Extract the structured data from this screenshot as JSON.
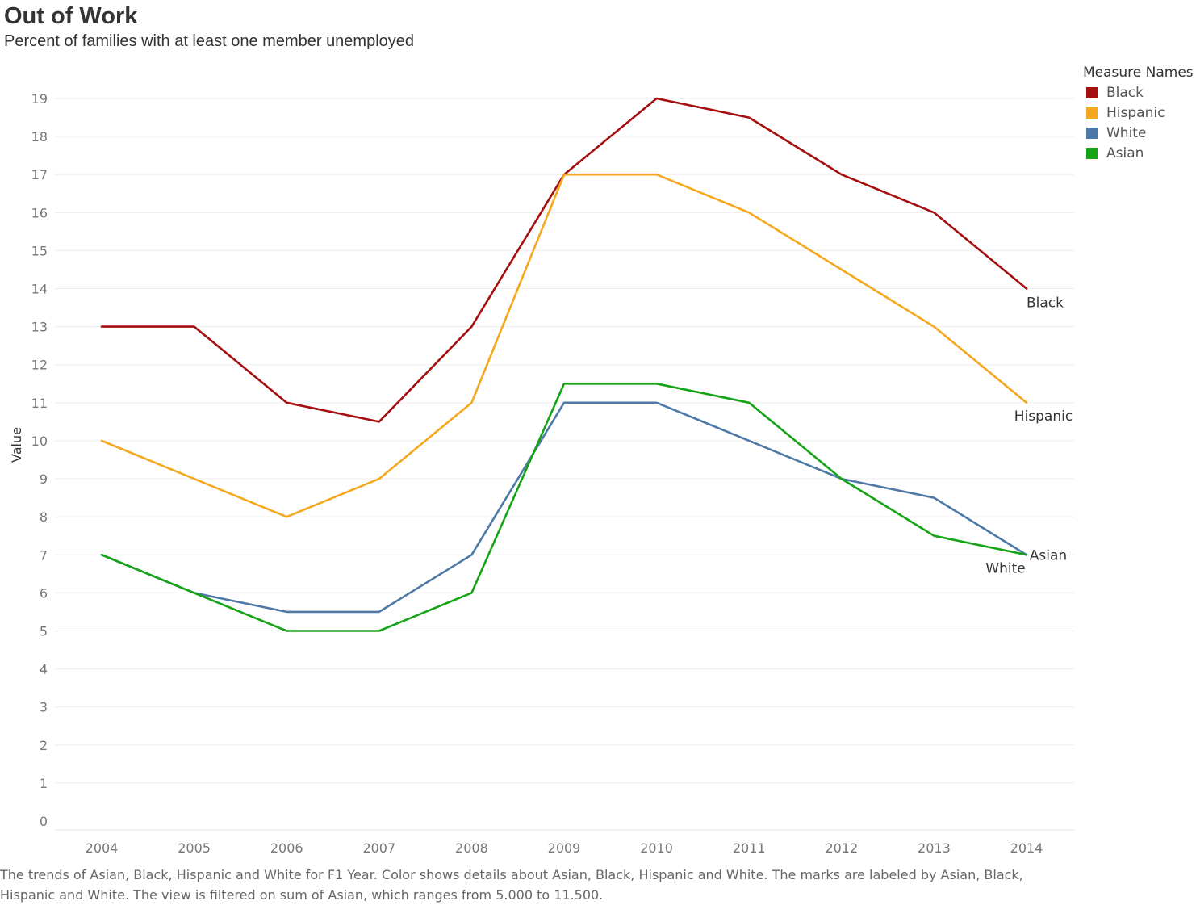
{
  "title": "Out of Work",
  "subtitle": "Percent of families with at least one member unemployed",
  "legend": {
    "title": "Measure Names",
    "items": [
      {
        "label": "Black",
        "color": "#a50f0f"
      },
      {
        "label": "Hispanic",
        "color": "#f5a81e"
      },
      {
        "label": "White",
        "color": "#4e79a7"
      },
      {
        "label": "Asian",
        "color": "#16a416"
      }
    ]
  },
  "caption": "The trends of Asian, Black, Hispanic and White for F1 Year.  Color shows details about Asian, Black, Hispanic and White.  The marks are labeled by Asian, Black, Hispanic and White. The view is filtered on sum of Asian, which ranges from 5.000 to 11.500.",
  "chart_data": {
    "type": "line",
    "title": "Out of Work",
    "subtitle": "Percent of families with at least one member unemployed",
    "xlabel": "",
    "ylabel": "Value",
    "x": [
      2004,
      2005,
      2006,
      2007,
      2008,
      2009,
      2010,
      2011,
      2012,
      2013,
      2014
    ],
    "yticks": [
      0,
      1,
      2,
      3,
      4,
      5,
      6,
      7,
      8,
      9,
      10,
      11,
      12,
      13,
      14,
      15,
      16,
      17,
      18,
      19
    ],
    "ylim": [
      0,
      20
    ],
    "grid": "horizontal",
    "legend_position": "right",
    "series": [
      {
        "name": "Black",
        "color": "#a50f0f",
        "values": [
          13,
          13,
          11,
          10.5,
          13,
          17,
          19,
          18.5,
          17,
          16,
          14
        ],
        "end_label": "Black"
      },
      {
        "name": "Hispanic",
        "color": "#f5a81e",
        "values": [
          10,
          9,
          8,
          9,
          11,
          17,
          17,
          16,
          14.5,
          13,
          11
        ],
        "end_label": "Hispanic"
      },
      {
        "name": "White",
        "color": "#4e79a7",
        "values": [
          7,
          6,
          5.5,
          5.5,
          7,
          11,
          11,
          10,
          9,
          8.5,
          7
        ],
        "end_label": "White"
      },
      {
        "name": "Asian",
        "color": "#16a416",
        "values": [
          7,
          6,
          5,
          5,
          6,
          11.5,
          11.5,
          11,
          9,
          7.5,
          7
        ],
        "end_label": "Asian"
      }
    ]
  }
}
